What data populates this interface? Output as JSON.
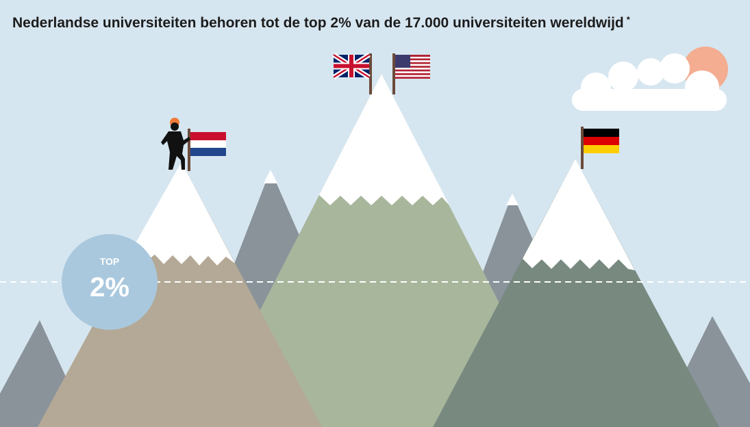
{
  "header": {
    "title": "Nederlandse universiteiten behoren tot de top 2% van de 17.000 universiteiten wereldwijd",
    "footnote_mark": "*"
  },
  "badge": {
    "label": "TOP",
    "value": "2%"
  }
}
